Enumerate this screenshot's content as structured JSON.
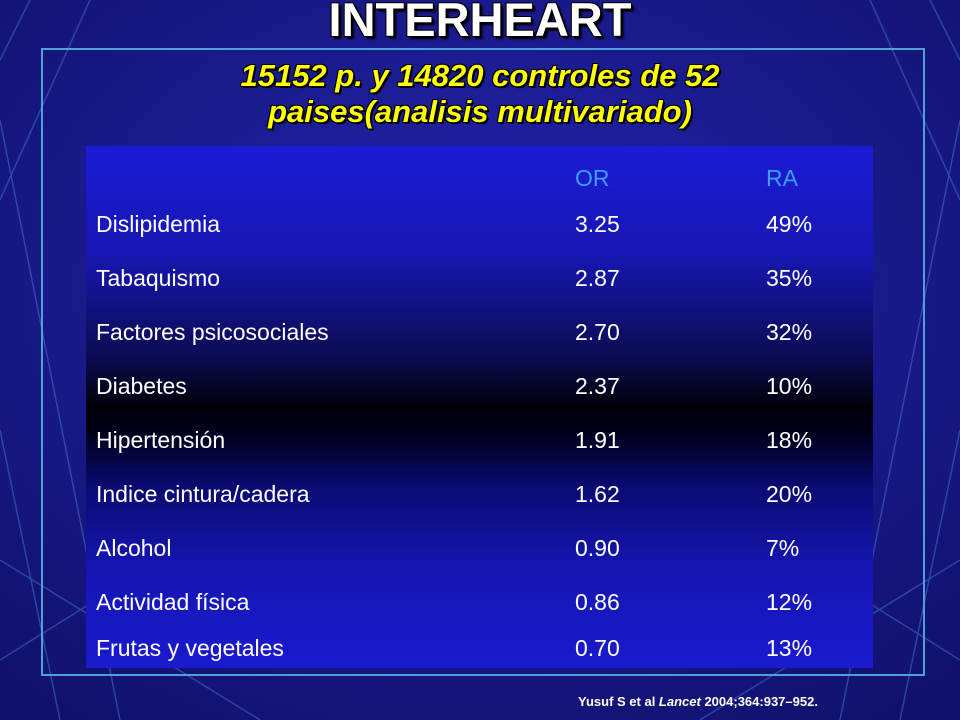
{
  "title": "INTERHEART",
  "subtitle_line1": "15152 p. y 14820 controles de 52",
  "subtitle_line2": "paises(analisis multivariado)",
  "table": {
    "headers": {
      "col1": "",
      "col2": "OR",
      "col3": "RA"
    },
    "rows": [
      {
        "factor": "Dislipidemia",
        "or": "3.25",
        "ra": "49%"
      },
      {
        "factor": "Tabaquismo",
        "or": "2.87",
        "ra": "35%"
      },
      {
        "factor": "Factores psicosociales",
        "or": "2.70",
        "ra": "32%"
      },
      {
        "factor": "Diabetes",
        "or": "2.37",
        "ra": "10%"
      },
      {
        "factor": "Hipertensión",
        "or": "1.91",
        "ra": "18%"
      },
      {
        "factor": "Indice cintura/cadera",
        "or": "1.62",
        "ra": "20%"
      },
      {
        "factor": "Alcohol",
        "or": "0.90",
        "ra": "7%"
      },
      {
        "factor": "Actividad física",
        "or": "0.86",
        "ra": "12%"
      },
      {
        "factor": "Frutas y vegetales",
        "or": "0.70",
        "ra": "13%"
      }
    ]
  },
  "citation": {
    "prefix": "Yusuf S et al ",
    "journal": "Lancet",
    "suffix": " 2004;364:937–952."
  },
  "colors": {
    "background": "#1a1a8c",
    "title": "#ffffff",
    "subtitle": "#ffff00",
    "header_text": "#3c9cff",
    "frame": "#4f9fd8"
  }
}
